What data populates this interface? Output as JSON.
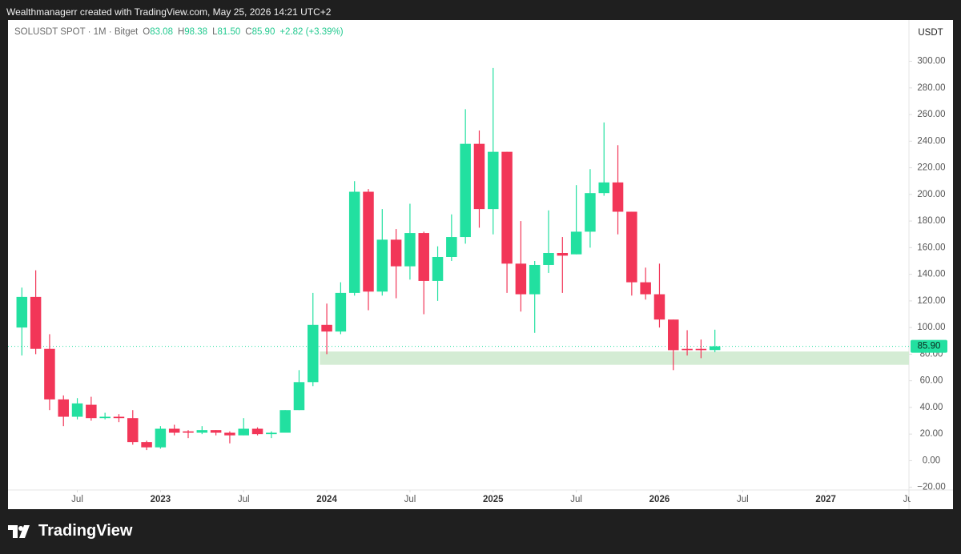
{
  "attribution": "Wealthmanagerr created with TradingView.com, May 25, 2026 14:21 UTC+2",
  "brand": "TradingView",
  "chart_data": {
    "type": "candlestick",
    "title": "SOLUSDT SPOT · 1M · Bitget",
    "ohlc_legend": [
      {
        "key": "O",
        "value": "83.08"
      },
      {
        "key": "H",
        "value": "98.38"
      },
      {
        "key": "L",
        "value": "81.50"
      },
      {
        "key": "C",
        "value": "85.90"
      },
      {
        "key": "",
        "value": "+2.82 (+3.39%)"
      }
    ],
    "currency": "USDT",
    "up_color": "#22e0a0",
    "down_color": "#f23658",
    "x": [
      "2022-03",
      "2022-04",
      "2022-05",
      "2022-06",
      "2022-07",
      "2022-08",
      "2022-09",
      "2022-10",
      "2022-11",
      "2022-12",
      "2023-01",
      "2023-02",
      "2023-03",
      "2023-04",
      "2023-05",
      "2023-06",
      "2023-07",
      "2023-08",
      "2023-09",
      "2023-10",
      "2023-11",
      "2023-12",
      "2024-01",
      "2024-02",
      "2024-03",
      "2024-04",
      "2024-05",
      "2024-06",
      "2024-07",
      "2024-08",
      "2024-09",
      "2024-10",
      "2024-11",
      "2024-12",
      "2025-01",
      "2025-02",
      "2025-03",
      "2025-04",
      "2025-05",
      "2025-06",
      "2025-07",
      "2025-08",
      "2025-09",
      "2025-10",
      "2025-11",
      "2025-12",
      "2026-01",
      "2026-02",
      "2026-03",
      "2026-04",
      "2026-05"
    ],
    "open": [
      100,
      123,
      84,
      46,
      33,
      42,
      32,
      33,
      32,
      14,
      10,
      24,
      22,
      21,
      23,
      21,
      19,
      24,
      20,
      21,
      38,
      59,
      102,
      97,
      126,
      202,
      127,
      166,
      146,
      171,
      135,
      153,
      168,
      238,
      189,
      232,
      148,
      125,
      147,
      156,
      155,
      172,
      201,
      209,
      187,
      134,
      125,
      106,
      84,
      84,
      83.08
    ],
    "high": [
      130,
      143,
      95,
      49,
      47,
      48,
      36,
      35,
      38,
      15,
      26,
      27,
      23,
      26,
      23,
      22,
      32,
      25,
      22,
      38,
      68,
      126,
      118,
      134,
      210,
      204,
      189,
      174,
      193,
      172,
      161,
      185,
      264,
      248,
      295,
      232,
      180,
      150,
      188,
      168,
      207,
      219,
      254,
      237,
      187,
      145,
      148,
      106,
      98,
      91,
      98.38
    ],
    "low": [
      79,
      80,
      38,
      26,
      31,
      30,
      31,
      29,
      12,
      8,
      9,
      19,
      17,
      20,
      19,
      13,
      19,
      19,
      17,
      21,
      38,
      56,
      80,
      95,
      124,
      113,
      124,
      122,
      136,
      110,
      120,
      150,
      163,
      175,
      170,
      126,
      112,
      96,
      141,
      126,
      155,
      160,
      199,
      170,
      124,
      121,
      100,
      68,
      79,
      77,
      81.5
    ],
    "close": [
      123,
      84,
      46,
      33,
      43,
      32,
      33,
      32,
      14,
      10,
      24,
      21,
      21,
      23,
      21,
      19,
      24,
      20,
      21,
      38,
      59,
      102,
      97,
      126,
      202,
      127,
      166,
      146,
      171,
      135,
      153,
      168,
      238,
      189,
      232,
      148,
      125,
      147,
      156,
      154,
      172,
      201,
      209,
      187,
      134,
      125,
      106,
      83,
      83,
      83,
      85.9
    ],
    "last_price": {
      "value": 85.9,
      "label": "85.90"
    },
    "zone": {
      "from": "2024-01",
      "low": 72,
      "high": 82,
      "color": "#d4ecd4"
    },
    "xlim": [
      "2022-02",
      "2027-07"
    ],
    "xticks": [
      {
        "value": "2022-07",
        "label": "Jul"
      },
      {
        "value": "2023-01",
        "label": "2023"
      },
      {
        "value": "2023-07",
        "label": "Jul"
      },
      {
        "value": "2024-01",
        "label": "2024"
      },
      {
        "value": "2024-07",
        "label": "Jul"
      },
      {
        "value": "2025-01",
        "label": "2025"
      },
      {
        "value": "2025-07",
        "label": "Jul"
      },
      {
        "value": "2026-01",
        "label": "2026"
      },
      {
        "value": "2026-07",
        "label": "Jul"
      },
      {
        "value": "2027-01",
        "label": "2027"
      },
      {
        "value": "2027-07",
        "label": "Jul"
      }
    ],
    "ylim": [
      -22,
      331
    ],
    "yticks": [
      {
        "value": -20,
        "label": "−20.00"
      },
      {
        "value": 0,
        "label": "0.00"
      },
      {
        "value": 20,
        "label": "20.00"
      },
      {
        "value": 40,
        "label": "40.00"
      },
      {
        "value": 60,
        "label": "60.00"
      },
      {
        "value": 80,
        "label": "80.00"
      },
      {
        "value": 100,
        "label": "100.00"
      },
      {
        "value": 120,
        "label": "120.00"
      },
      {
        "value": 140,
        "label": "140.00"
      },
      {
        "value": 160,
        "label": "160.00"
      },
      {
        "value": 180,
        "label": "180.00"
      },
      {
        "value": 200,
        "label": "200.00"
      },
      {
        "value": 220,
        "label": "220.00"
      },
      {
        "value": 240,
        "label": "240.00"
      },
      {
        "value": 260,
        "label": "260.00"
      },
      {
        "value": 280,
        "label": "280.00"
      },
      {
        "value": 300,
        "label": "300.00"
      }
    ]
  }
}
